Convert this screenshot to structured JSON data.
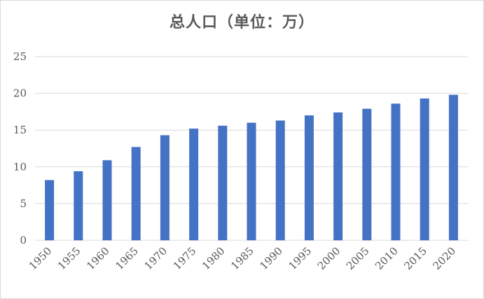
{
  "chart_data": {
    "type": "bar",
    "title": "总人口（单位：万）",
    "xlabel": "",
    "ylabel": "",
    "categories": [
      "1950",
      "1955",
      "1960",
      "1965",
      "1970",
      "1975",
      "1980",
      "1985",
      "1990",
      "1995",
      "2000",
      "2005",
      "2010",
      "2015",
      "2020"
    ],
    "values": [
      8.2,
      9.4,
      10.9,
      12.7,
      14.3,
      15.2,
      15.6,
      16.0,
      16.3,
      17.0,
      17.4,
      17.9,
      18.6,
      19.3,
      19.8
    ],
    "yticks": [
      "0",
      "5",
      "10",
      "15",
      "20",
      "25"
    ],
    "ylim": [
      0,
      25
    ],
    "grid": true,
    "legend": "none",
    "bar_color": "#4472c4",
    "grid_color": "#d9d9d9"
  }
}
